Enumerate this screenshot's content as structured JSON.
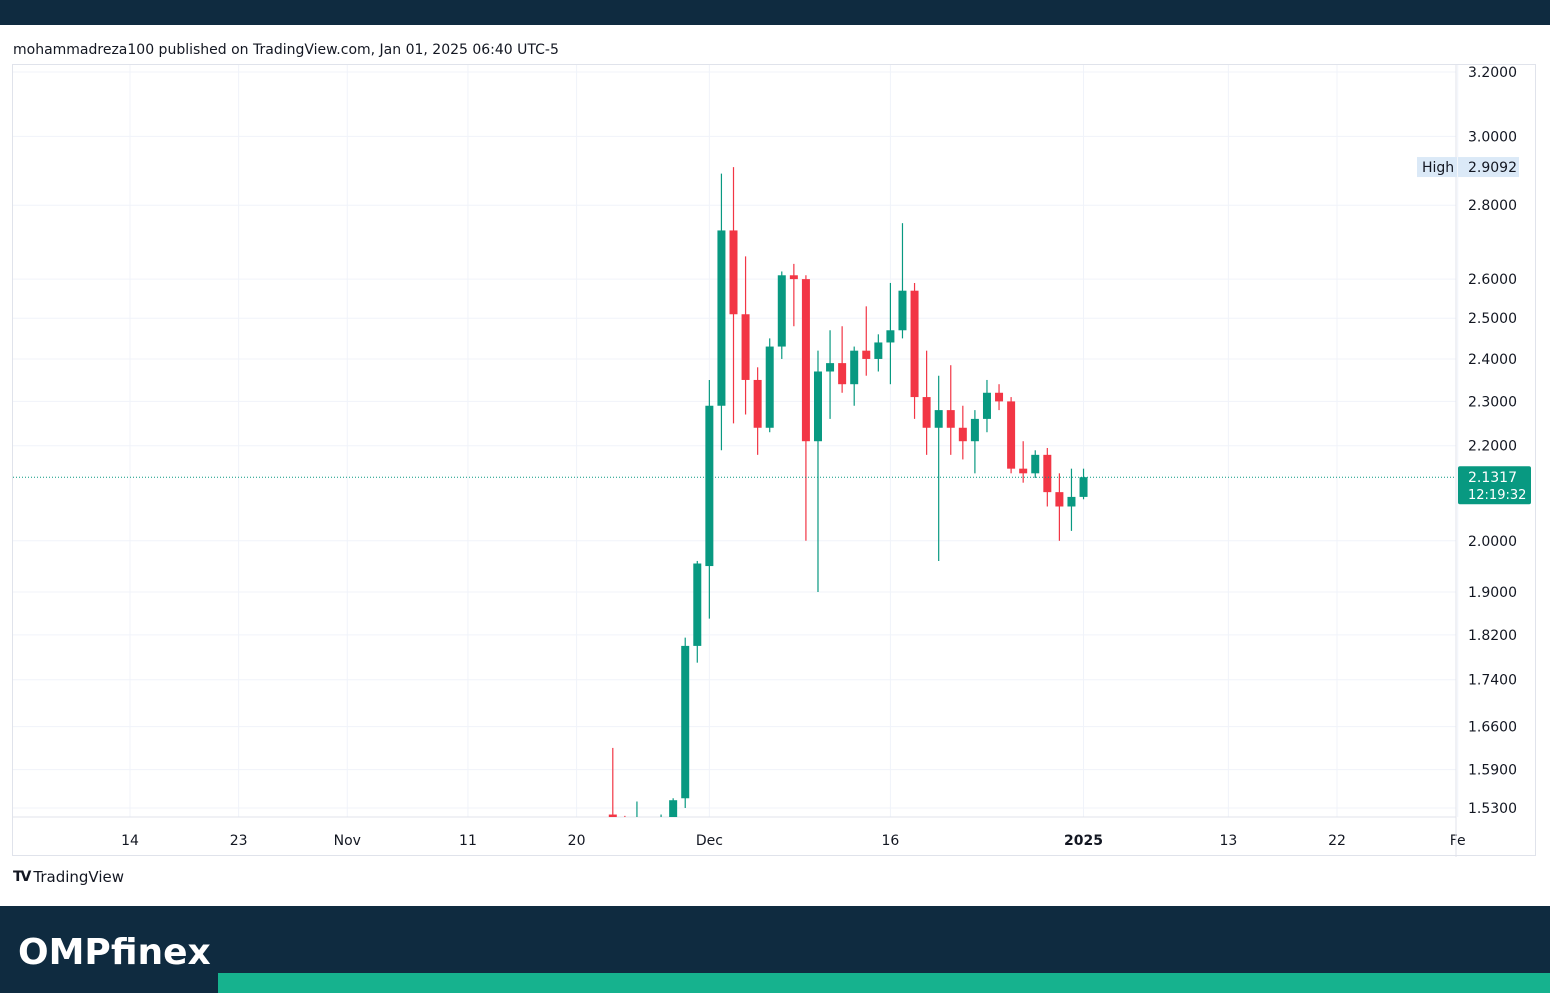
{
  "header": {
    "published_text": "mohammadreza100 published on TradingView.com, Jan 01, 2025 06:40 UTC-5"
  },
  "footer": {
    "tradingview_label": "TradingView",
    "tradingview_mark": "TV",
    "brand_part1": "OMPf",
    "brand_i": "i",
    "brand_part2": "nex"
  },
  "colors": {
    "up": "#089981",
    "down": "#f23645",
    "grid": "#f0f3fa",
    "axis_text": "#131722",
    "last_price_bg": "#089981",
    "high_bg": "#dbe9f7",
    "brand_accent": "#16b28e",
    "header_bg": "#0f2b40"
  },
  "chart_data": {
    "type": "candlestick",
    "scale": "log",
    "ylim": [
      1.51,
      3.22
    ],
    "y_ticks": [
      "1.5300",
      "1.5900",
      "1.6600",
      "1.7400",
      "1.8200",
      "1.9000",
      "2.0000",
      "2.2000",
      "2.3000",
      "2.4000",
      "2.5000",
      "2.6000",
      "2.8000",
      "3.0000",
      "3.2000"
    ],
    "x_ticks": [
      {
        "label": "14",
        "day": 0
      },
      {
        "label": "23",
        "day": 9
      },
      {
        "label": "Nov",
        "day": 18
      },
      {
        "label": "11",
        "day": 28
      },
      {
        "label": "20",
        "day": 37
      },
      {
        "label": "Dec",
        "day": 48
      },
      {
        "label": "16",
        "day": 63
      },
      {
        "label": "2025",
        "day": 79,
        "bold": true
      },
      {
        "label": "13",
        "day": 91
      },
      {
        "label": "22",
        "day": 100
      },
      {
        "label": "Fe",
        "day": 110
      }
    ],
    "candles": [
      {
        "day": 40,
        "o": 1.52,
        "h": 1.625,
        "l": 1.5,
        "c": 1.51
      },
      {
        "day": 41,
        "o": 1.513,
        "h": 1.518,
        "l": 1.5,
        "c": 1.51
      },
      {
        "day": 42,
        "o": 1.51,
        "h": 1.54,
        "l": 1.5,
        "c": 1.51
      },
      {
        "day": 44,
        "o": 1.51,
        "h": 1.52,
        "l": 1.5,
        "c": 1.513
      },
      {
        "day": 45,
        "o": 1.51,
        "h": 1.545,
        "l": 1.5,
        "c": 1.542
      },
      {
        "day": 46,
        "o": 1.545,
        "h": 1.815,
        "l": 1.53,
        "c": 1.8
      },
      {
        "day": 47,
        "o": 1.8,
        "h": 1.96,
        "l": 1.77,
        "c": 1.955
      },
      {
        "day": 48,
        "o": 1.95,
        "h": 2.35,
        "l": 1.85,
        "c": 2.29
      },
      {
        "day": 49,
        "o": 2.29,
        "h": 2.89,
        "l": 2.19,
        "c": 2.73
      },
      {
        "day": 50,
        "o": 2.73,
        "h": 2.909,
        "l": 2.25,
        "c": 2.51
      },
      {
        "day": 51,
        "o": 2.51,
        "h": 2.66,
        "l": 2.27,
        "c": 2.35
      },
      {
        "day": 52,
        "o": 2.35,
        "h": 2.38,
        "l": 2.18,
        "c": 2.24
      },
      {
        "day": 53,
        "o": 2.24,
        "h": 2.45,
        "l": 2.23,
        "c": 2.43
      },
      {
        "day": 54,
        "o": 2.43,
        "h": 2.62,
        "l": 2.4,
        "c": 2.61
      },
      {
        "day": 55,
        "o": 2.61,
        "h": 2.64,
        "l": 2.48,
        "c": 2.6
      },
      {
        "day": 56,
        "o": 2.6,
        "h": 2.61,
        "l": 2.0,
        "c": 2.21
      },
      {
        "day": 57,
        "o": 2.21,
        "h": 2.42,
        "l": 1.9,
        "c": 2.37
      },
      {
        "day": 58,
        "o": 2.37,
        "h": 2.47,
        "l": 2.26,
        "c": 2.39
      },
      {
        "day": 59,
        "o": 2.39,
        "h": 2.48,
        "l": 2.32,
        "c": 2.34
      },
      {
        "day": 60,
        "o": 2.34,
        "h": 2.43,
        "l": 2.29,
        "c": 2.42
      },
      {
        "day": 61,
        "o": 2.42,
        "h": 2.53,
        "l": 2.36,
        "c": 2.4
      },
      {
        "day": 62,
        "o": 2.4,
        "h": 2.46,
        "l": 2.37,
        "c": 2.44
      },
      {
        "day": 63,
        "o": 2.44,
        "h": 2.59,
        "l": 2.34,
        "c": 2.47
      },
      {
        "day": 64,
        "o": 2.47,
        "h": 2.75,
        "l": 2.45,
        "c": 2.57
      },
      {
        "day": 65,
        "o": 2.57,
        "h": 2.59,
        "l": 2.26,
        "c": 2.31
      },
      {
        "day": 66,
        "o": 2.31,
        "h": 2.42,
        "l": 2.18,
        "c": 2.24
      },
      {
        "day": 67,
        "o": 2.24,
        "h": 2.36,
        "l": 1.96,
        "c": 2.28
      },
      {
        "day": 68,
        "o": 2.28,
        "h": 2.385,
        "l": 2.18,
        "c": 2.24
      },
      {
        "day": 69,
        "o": 2.24,
        "h": 2.29,
        "l": 2.17,
        "c": 2.21
      },
      {
        "day": 70,
        "o": 2.21,
        "h": 2.28,
        "l": 2.14,
        "c": 2.26
      },
      {
        "day": 71,
        "o": 2.26,
        "h": 2.35,
        "l": 2.23,
        "c": 2.32
      },
      {
        "day": 72,
        "o": 2.32,
        "h": 2.34,
        "l": 2.28,
        "c": 2.3
      },
      {
        "day": 73,
        "o": 2.3,
        "h": 2.31,
        "l": 2.14,
        "c": 2.15
      },
      {
        "day": 74,
        "o": 2.15,
        "h": 2.21,
        "l": 2.12,
        "c": 2.14
      },
      {
        "day": 75,
        "o": 2.14,
        "h": 2.19,
        "l": 2.13,
        "c": 2.18
      },
      {
        "day": 76,
        "o": 2.18,
        "h": 2.195,
        "l": 2.07,
        "c": 2.1
      },
      {
        "day": 77,
        "o": 2.1,
        "h": 2.14,
        "l": 2.0,
        "c": 2.07
      },
      {
        "day": 78,
        "o": 2.07,
        "h": 2.15,
        "l": 2.02,
        "c": 2.09
      },
      {
        "day": 79,
        "o": 2.09,
        "h": 2.15,
        "l": 2.085,
        "c": 2.1317
      }
    ],
    "last_price": {
      "value": "2.1317",
      "countdown": "12:19:32"
    },
    "high": {
      "label": "High",
      "value": "2.9092"
    }
  }
}
